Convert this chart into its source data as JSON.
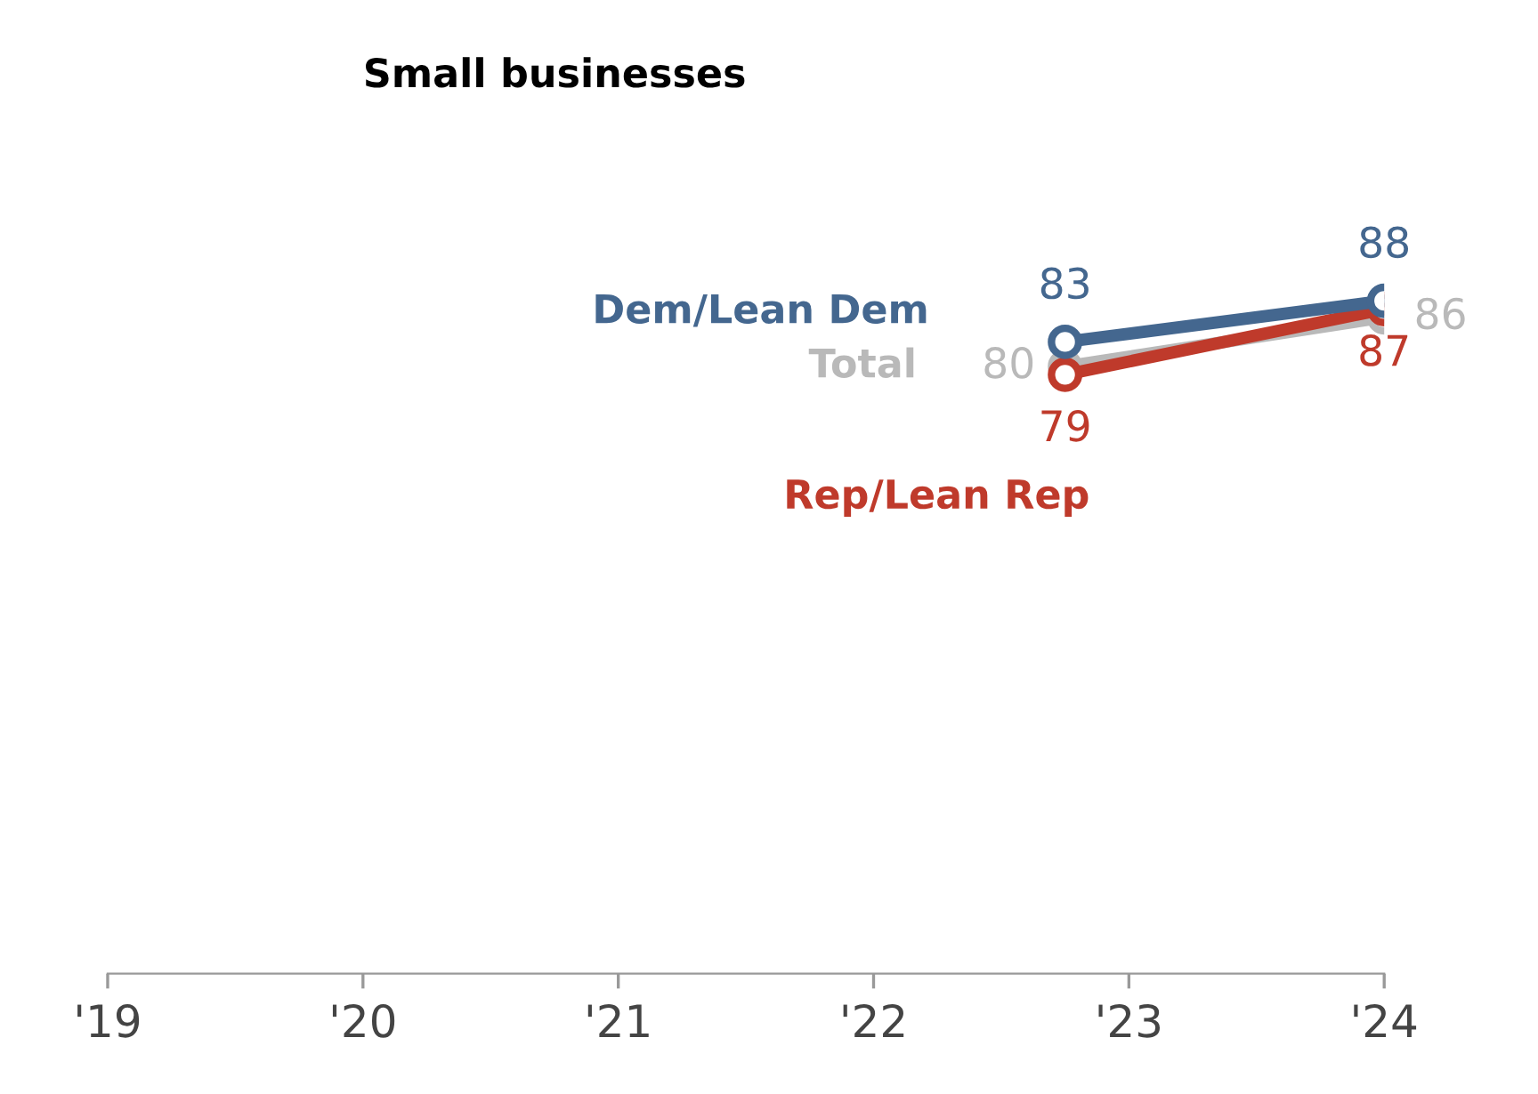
{
  "chart_data": {
    "type": "line",
    "title": "Small businesses",
    "x": [
      2022.75,
      2024
    ],
    "series": [
      {
        "name": "Total",
        "color": "#b9b9b9",
        "values": [
          80,
          86
        ]
      },
      {
        "name": "Rep/Lean Rep",
        "color": "#bf3a2b",
        "values": [
          79,
          87
        ]
      },
      {
        "name": "Dem/Lean Dem",
        "color": "#44678f",
        "values": [
          83,
          88
        ]
      }
    ],
    "xlim": [
      2019,
      2024
    ],
    "xticks": [
      {
        "value": 2019,
        "label": "'19"
      },
      {
        "value": 2020,
        "label": "'20"
      },
      {
        "value": 2021,
        "label": "'21"
      },
      {
        "value": 2022,
        "label": "'22"
      },
      {
        "value": 2023,
        "label": "'23"
      },
      {
        "value": 2024,
        "label": "'24"
      }
    ],
    "tick_labels": "x",
    "data_labels": true,
    "grid": false,
    "legend": false,
    "marker": "circle",
    "line_style": "solid"
  }
}
